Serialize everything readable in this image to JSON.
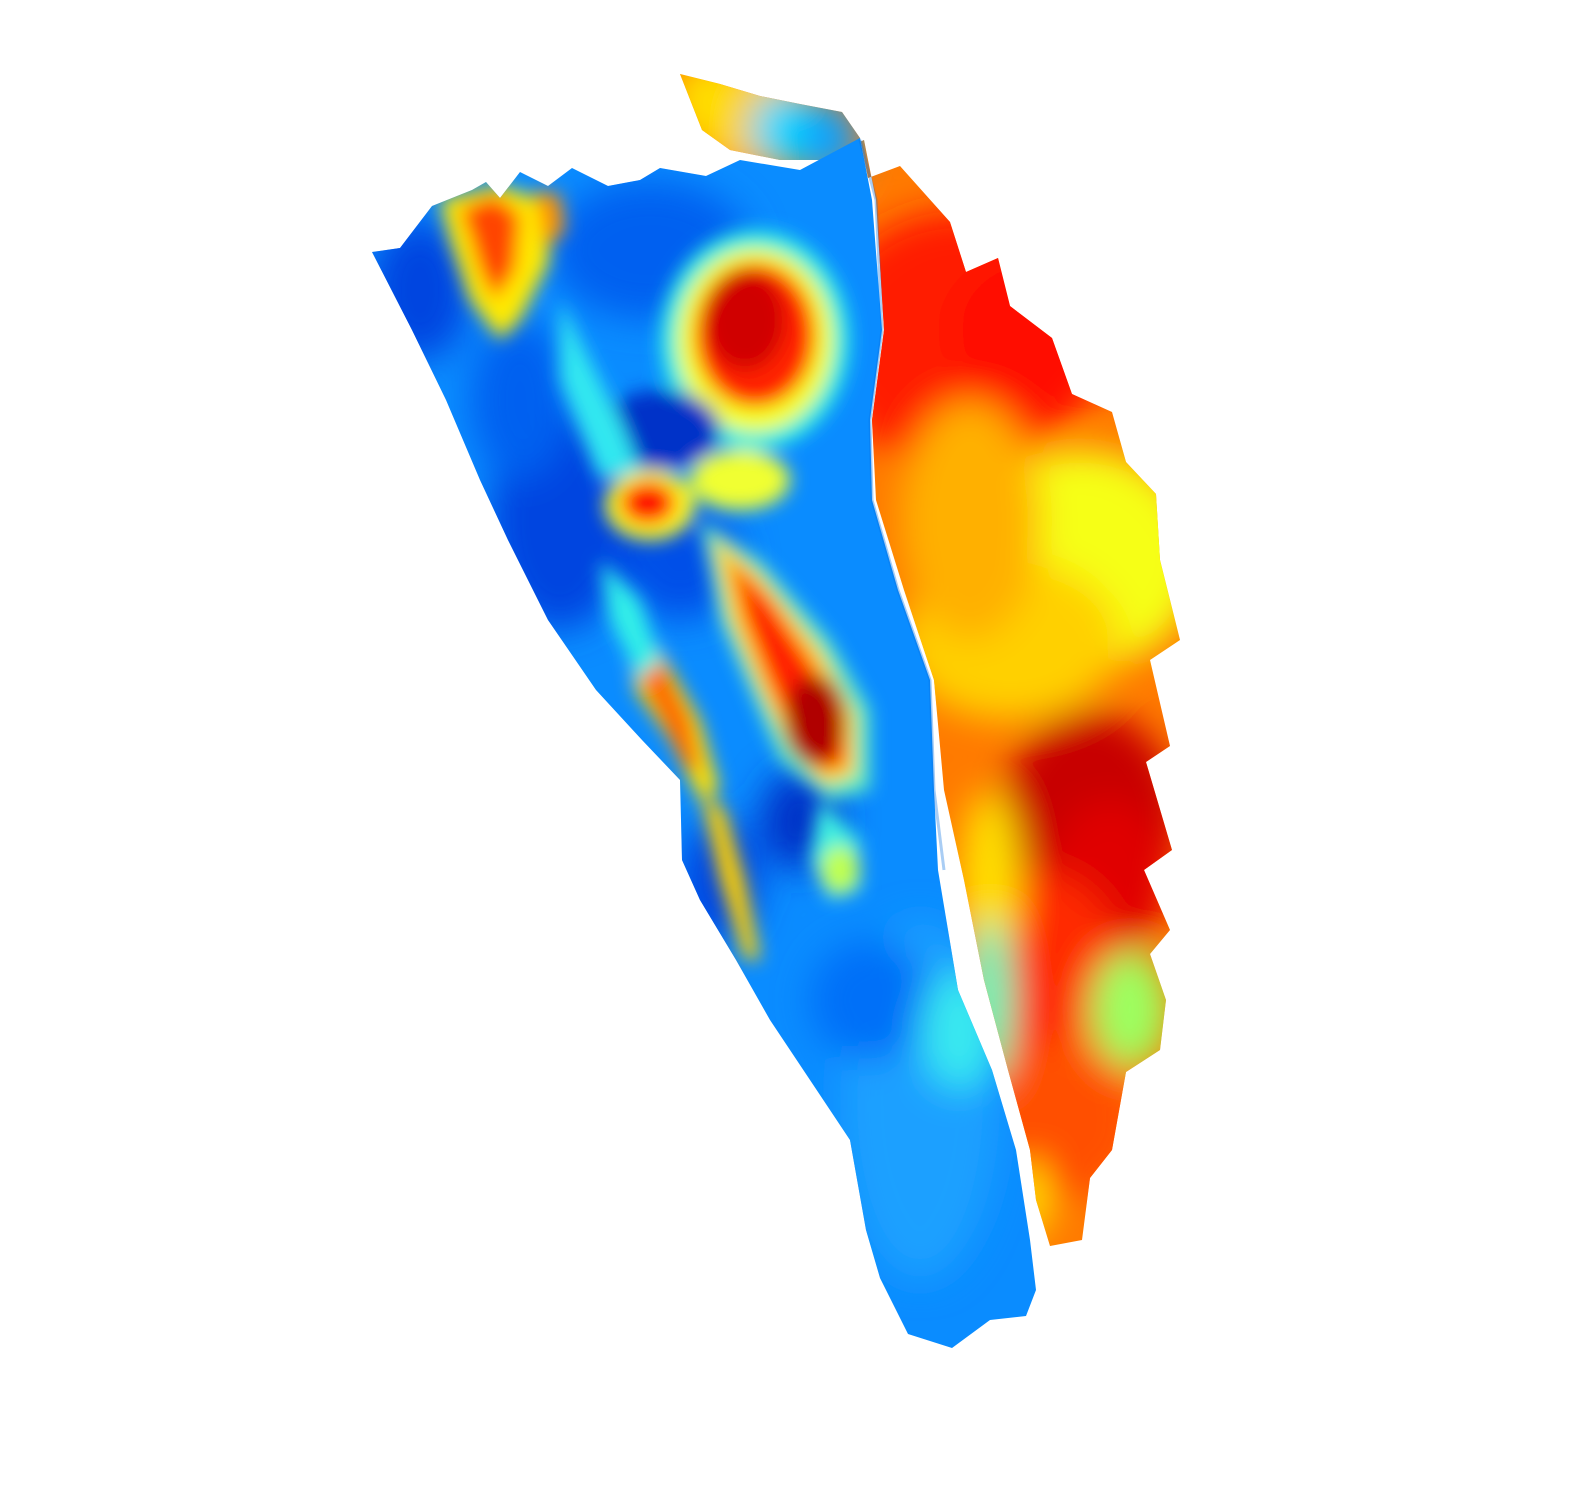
{
  "scene": {
    "kind": "3d-surface-render",
    "colormap": "jet",
    "background": "#ffffff",
    "colors": {
      "dark_blue": "#0033cc",
      "blue": "#0a78ff",
      "light_blue": "#1aa0ff",
      "cyan": "#1ff0f0",
      "yellow": "#f8ff10",
      "orange": "#ff9a00",
      "red": "#ff1a00",
      "dark_red": "#b00000"
    }
  }
}
